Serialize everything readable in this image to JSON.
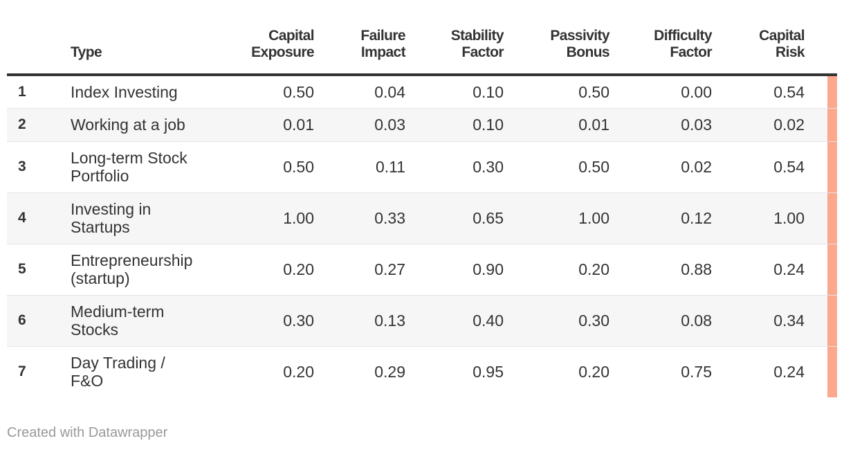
{
  "chart_data": {
    "type": "table",
    "columns": [
      "",
      "Type",
      "Capital Exposure",
      "Failure Impact",
      "Stability Factor",
      "Passivity Bonus",
      "Difficulty Factor",
      "Capital Risk"
    ],
    "header_lines": [
      [
        "",
        ""
      ],
      [
        "",
        "Type"
      ],
      [
        "Capital",
        "Exposure"
      ],
      [
        "Failure",
        "Impact"
      ],
      [
        "Stability",
        "Factor"
      ],
      [
        "Passivity",
        "Bonus"
      ],
      [
        "Difficulty",
        "Factor"
      ],
      [
        "Capital",
        "Risk"
      ]
    ],
    "rows": [
      {
        "idx": "1",
        "type": [
          "Index Investing"
        ],
        "values": [
          "0.50",
          "0.04",
          "0.10",
          "0.50",
          "0.00",
          "0.54"
        ]
      },
      {
        "idx": "2",
        "type": [
          "Working at a job"
        ],
        "values": [
          "0.01",
          "0.03",
          "0.10",
          "0.01",
          "0.03",
          "0.02"
        ]
      },
      {
        "idx": "3",
        "type": [
          "Long-term Stock",
          "Portfolio"
        ],
        "values": [
          "0.50",
          "0.11",
          "0.30",
          "0.50",
          "0.02",
          "0.54"
        ]
      },
      {
        "idx": "4",
        "type": [
          "Investing in",
          "Startups"
        ],
        "values": [
          "1.00",
          "0.33",
          "0.65",
          "1.00",
          "0.12",
          "1.00"
        ]
      },
      {
        "idx": "5",
        "type": [
          "Entrepreneurship",
          "(startup)"
        ],
        "values": [
          "0.20",
          "0.27",
          "0.90",
          "0.20",
          "0.88",
          "0.24"
        ]
      },
      {
        "idx": "6",
        "type": [
          "Medium-term",
          "Stocks"
        ],
        "values": [
          "0.30",
          "0.13",
          "0.40",
          "0.30",
          "0.08",
          "0.34"
        ]
      },
      {
        "idx": "7",
        "type": [
          "Day Trading /",
          "F&O"
        ],
        "values": [
          "0.20",
          "0.29",
          "0.95",
          "0.20",
          "0.75",
          "0.24"
        ]
      }
    ],
    "accent_color": "#fba88d"
  },
  "footer": {
    "text": "Created with Datawrapper"
  }
}
